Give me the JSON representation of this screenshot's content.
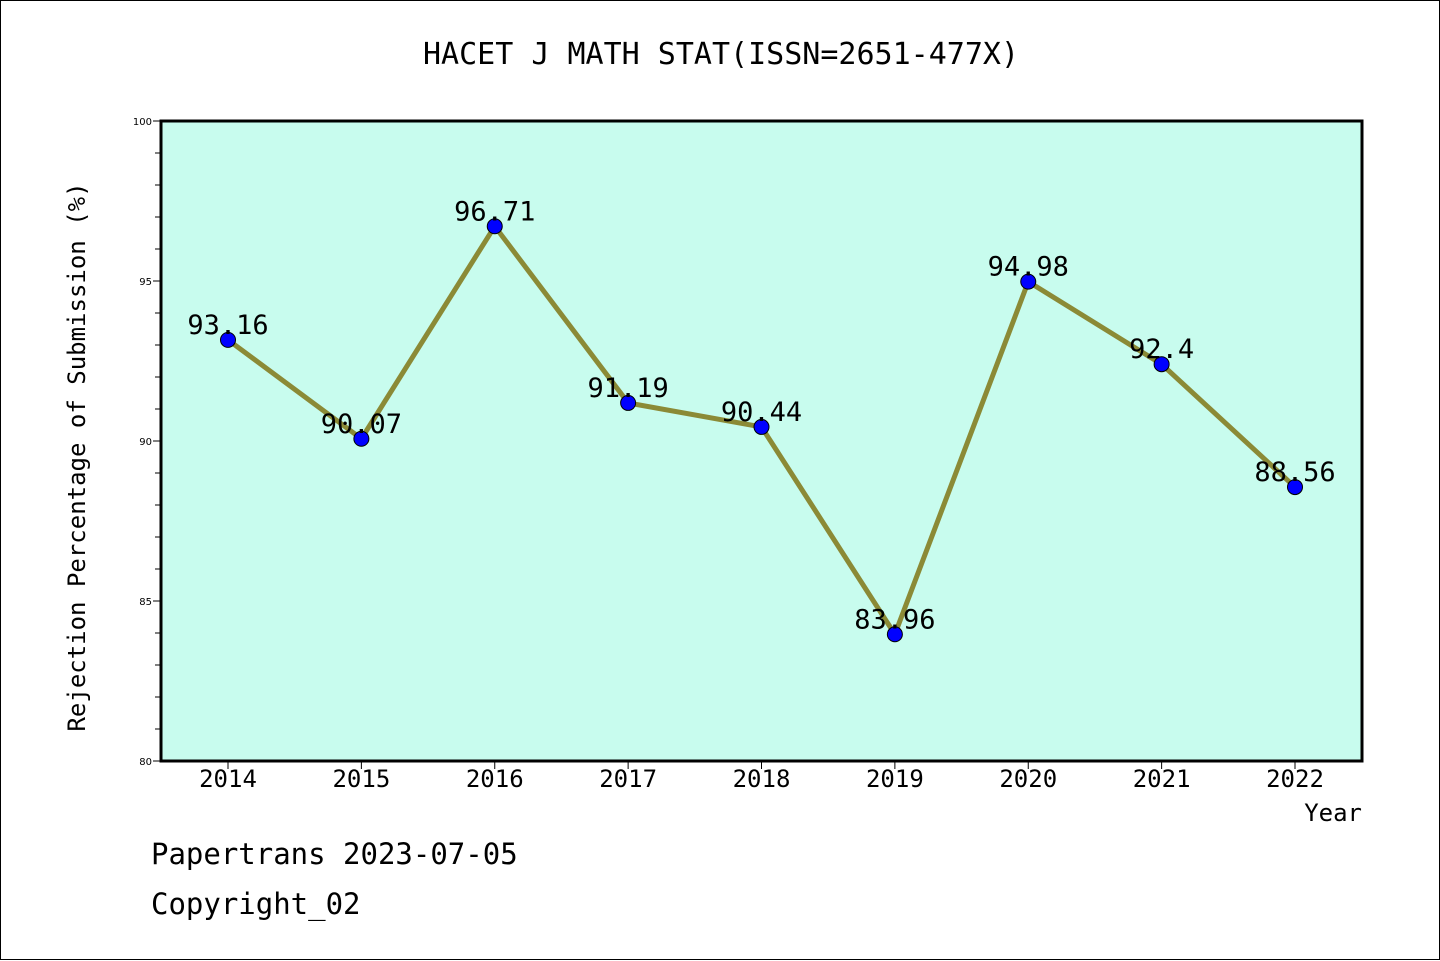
{
  "chart_data": {
    "type": "line",
    "title": "HACET J MATH STAT(ISSN=2651-477X)",
    "xlabel": "Year",
    "ylabel": "Rejection Percentage of Submission (%)",
    "categories": [
      "2014",
      "2015",
      "2016",
      "2017",
      "2018",
      "2019",
      "2020",
      "2021",
      "2022"
    ],
    "values": [
      93.16,
      90.07,
      96.71,
      91.19,
      90.44,
      83.96,
      94.98,
      92.4,
      88.56
    ],
    "data_labels": [
      "93.16",
      "90.07",
      "96.71",
      "91.19",
      "90.44",
      "83.96",
      "94.98",
      "92.4",
      "88.56"
    ],
    "ylim": [
      80,
      100
    ],
    "yticks": [
      "80",
      "85",
      "90",
      "95",
      "100"
    ],
    "grid": false,
    "legend": "none",
    "colors": {
      "plot_background": "#c8fcee",
      "line": "#8b8a36",
      "marker": "#0000ff"
    }
  },
  "footer": {
    "line1": "Papertrans 2023-07-05",
    "line2": "Copyright_02"
  }
}
